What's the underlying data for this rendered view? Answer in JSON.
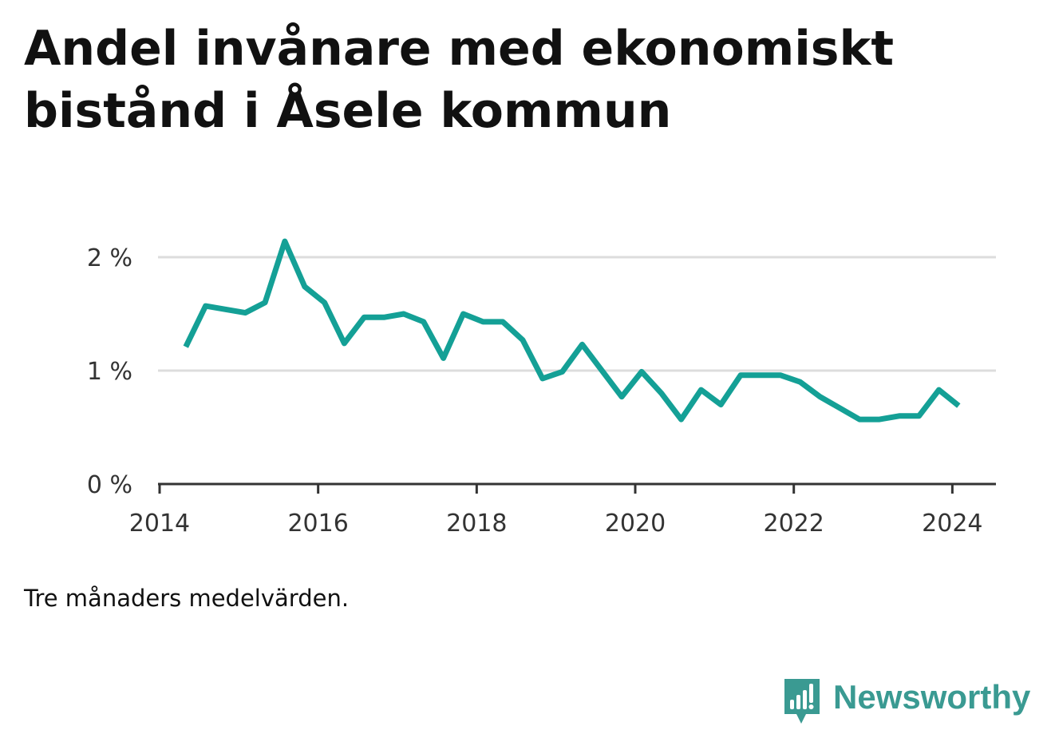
{
  "title": "Andel invånare med ekonomiskt bistånd i Åsele kommun",
  "note": "Tre månaders medelvärden.",
  "brand": {
    "name": "Newsworthy",
    "logo_icon": "bar-chart-speech-bubble-icon",
    "color": "#3a9a92"
  },
  "colors": {
    "line": "#14a096",
    "grid": "#dddddd",
    "axis": "#333333"
  },
  "chart_data": {
    "type": "line",
    "title": "Andel invånare med ekonomiskt bistånd i Åsele kommun",
    "xlabel": "",
    "ylabel": "",
    "grid": true,
    "xlim": [
      2013.98,
      2024.55
    ],
    "ylim": [
      0,
      2
    ],
    "x_ticks": [
      {
        "value": 2014,
        "label": "2014"
      },
      {
        "value": 2016,
        "label": "2016"
      },
      {
        "value": 2018,
        "label": "2018"
      },
      {
        "value": 2020,
        "label": "2020"
      },
      {
        "value": 2022,
        "label": "2022"
      },
      {
        "value": 2024,
        "label": "2024"
      }
    ],
    "y_ticks": [
      {
        "value": 0,
        "label": "0 %"
      },
      {
        "value": 1,
        "label": "1 %"
      },
      {
        "value": 2,
        "label": "2 %"
      }
    ],
    "series": [
      {
        "values": [
          {
            "x": 2014.33,
            "y": 1.21
          },
          {
            "x": 2014.58,
            "y": 1.57
          },
          {
            "x": 2014.83,
            "y": 1.54
          },
          {
            "x": 2015.08,
            "y": 1.51
          },
          {
            "x": 2015.33,
            "y": 1.6
          },
          {
            "x": 2015.58,
            "y": 2.14
          },
          {
            "x": 2015.83,
            "y": 1.74
          },
          {
            "x": 2016.08,
            "y": 1.6
          },
          {
            "x": 2016.33,
            "y": 1.24
          },
          {
            "x": 2016.58,
            "y": 1.47
          },
          {
            "x": 2016.83,
            "y": 1.47
          },
          {
            "x": 2017.08,
            "y": 1.5
          },
          {
            "x": 2017.33,
            "y": 1.43
          },
          {
            "x": 2017.58,
            "y": 1.11
          },
          {
            "x": 2017.83,
            "y": 1.5
          },
          {
            "x": 2018.08,
            "y": 1.43
          },
          {
            "x": 2018.33,
            "y": 1.43
          },
          {
            "x": 2018.58,
            "y": 1.27
          },
          {
            "x": 2018.83,
            "y": 0.93
          },
          {
            "x": 2019.08,
            "y": 0.99
          },
          {
            "x": 2019.33,
            "y": 1.23
          },
          {
            "x": 2019.58,
            "y": 1.0
          },
          {
            "x": 2019.83,
            "y": 0.77
          },
          {
            "x": 2020.08,
            "y": 0.99
          },
          {
            "x": 2020.33,
            "y": 0.8
          },
          {
            "x": 2020.58,
            "y": 0.57
          },
          {
            "x": 2020.83,
            "y": 0.83
          },
          {
            "x": 2021.08,
            "y": 0.7
          },
          {
            "x": 2021.33,
            "y": 0.96
          },
          {
            "x": 2021.58,
            "y": 0.96
          },
          {
            "x": 2021.83,
            "y": 0.96
          },
          {
            "x": 2022.08,
            "y": 0.9
          },
          {
            "x": 2022.33,
            "y": 0.77
          },
          {
            "x": 2022.58,
            "y": 0.67
          },
          {
            "x": 2022.83,
            "y": 0.57
          },
          {
            "x": 2023.08,
            "y": 0.57
          },
          {
            "x": 2023.33,
            "y": 0.6
          },
          {
            "x": 2023.58,
            "y": 0.6
          },
          {
            "x": 2023.83,
            "y": 0.83
          },
          {
            "x": 2024.08,
            "y": 0.69
          }
        ]
      }
    ]
  }
}
